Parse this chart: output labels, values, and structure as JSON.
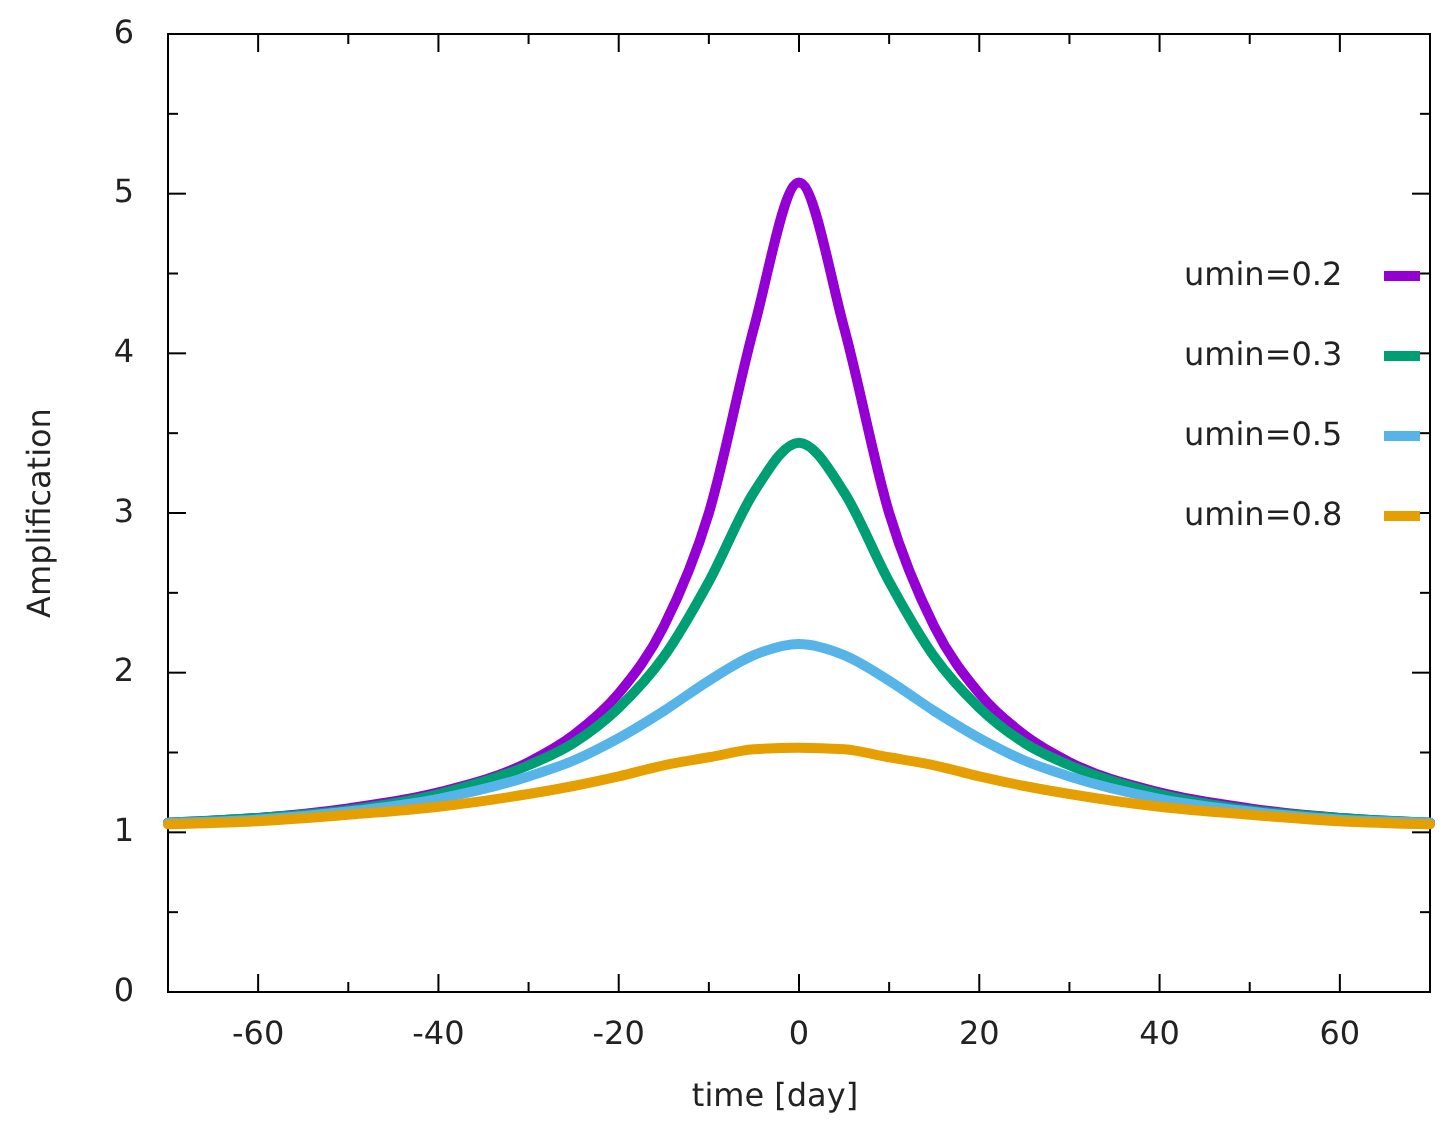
{
  "chart_data": {
    "type": "line",
    "xlabel": "time [day]",
    "ylabel": "Amplification",
    "x": [
      -70,
      -60,
      -50,
      -40,
      -30,
      -25,
      -20,
      -15,
      -10,
      -5,
      0,
      5,
      10,
      15,
      20,
      25,
      30,
      40,
      50,
      60,
      70
    ],
    "series": [
      {
        "name": "umin=0.2",
        "color": "#9400d3",
        "values": [
          1.06,
          1.09,
          1.15,
          1.25,
          1.44,
          1.61,
          1.87,
          2.29,
          3.0,
          4.16,
          5.07,
          4.16,
          3.0,
          2.29,
          1.87,
          1.61,
          1.44,
          1.25,
          1.15,
          1.09,
          1.06
        ]
      },
      {
        "name": "umin=0.3",
        "color": "#009e73",
        "values": [
          1.06,
          1.09,
          1.14,
          1.24,
          1.42,
          1.56,
          1.78,
          2.1,
          2.57,
          3.13,
          3.44,
          3.13,
          2.57,
          2.1,
          1.78,
          1.56,
          1.42,
          1.24,
          1.14,
          1.09,
          1.06
        ]
      },
      {
        "name": "umin=0.5",
        "color": "#56b4e9",
        "values": [
          1.06,
          1.08,
          1.13,
          1.21,
          1.35,
          1.45,
          1.59,
          1.76,
          1.95,
          2.11,
          2.18,
          2.11,
          1.95,
          1.76,
          1.59,
          1.45,
          1.35,
          1.21,
          1.13,
          1.08,
          1.06
        ]
      },
      {
        "name": "umin=0.8",
        "color": "#e69f00",
        "values": [
          1.05,
          1.07,
          1.11,
          1.16,
          1.24,
          1.29,
          1.35,
          1.42,
          1.47,
          1.52,
          1.53,
          1.52,
          1.47,
          1.42,
          1.35,
          1.29,
          1.24,
          1.16,
          1.11,
          1.07,
          1.05
        ]
      }
    ],
    "xlim": [
      -70,
      70
    ],
    "xticks": [
      -60,
      -40,
      -20,
      0,
      20,
      40,
      60
    ],
    "ylim": [
      0,
      6
    ],
    "yticks": [
      0,
      1,
      2,
      3,
      4,
      5,
      6
    ],
    "grid": false,
    "legend": "top right",
    "marker": "none",
    "line_style": "solid"
  }
}
